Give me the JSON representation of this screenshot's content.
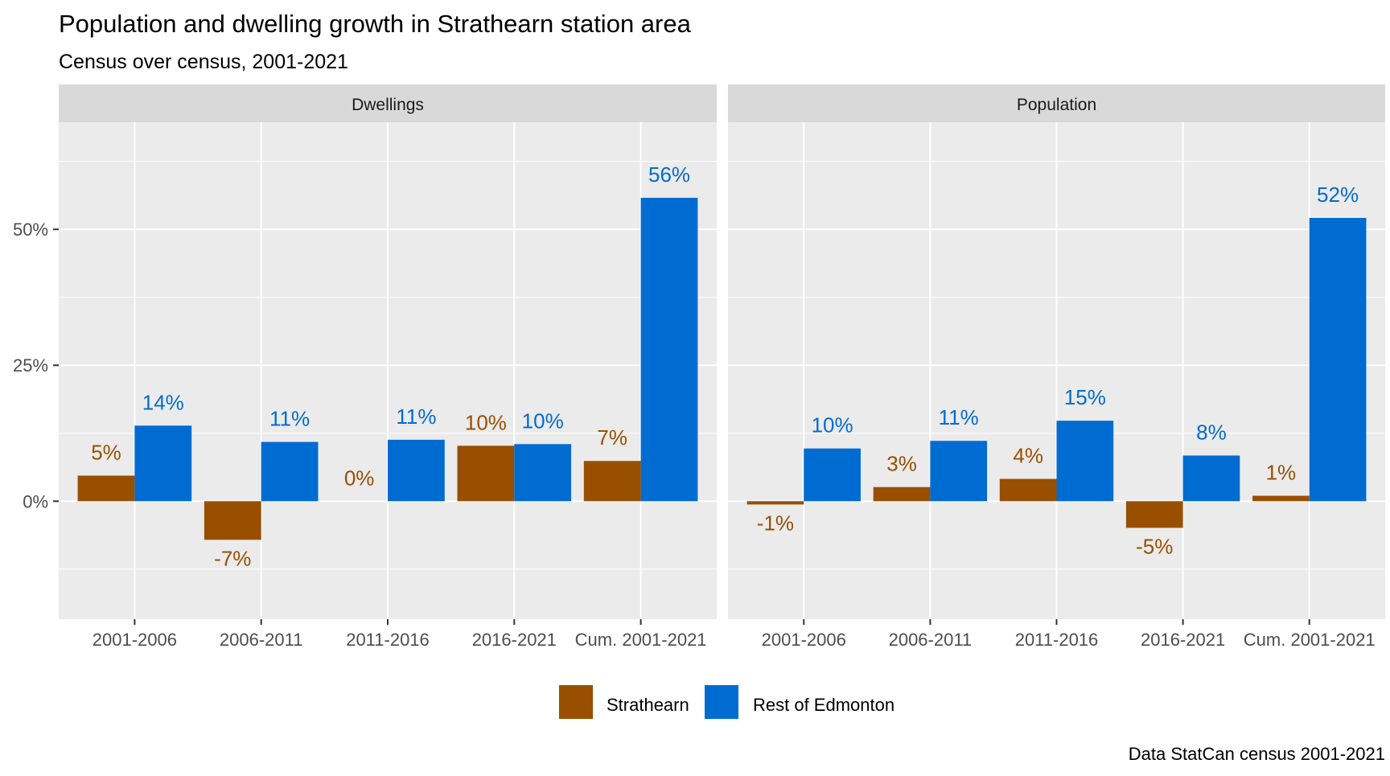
{
  "chart_data": {
    "type": "bar",
    "title": "Population and dwelling growth in Strathearn station area",
    "subtitle": "Census over census, 2001-2021",
    "caption": "Data StatCan census 2001-2021",
    "categories": [
      "2001-2006",
      "2006-2011",
      "2011-2016",
      "2016-2021",
      "Cum. 2001-2021"
    ],
    "ylim": [
      -21.7,
      69.7
    ],
    "yticks": [
      0,
      25,
      50
    ],
    "ytick_labels": [
      "0%",
      "25%",
      "50%"
    ],
    "grid": true,
    "legend_position": "bottom",
    "series_colors": {
      "Strathearn": "#994F00",
      "Rest of Edmonton": "#006CD1"
    },
    "legend": [
      "Strathearn",
      "Rest of Edmonton"
    ],
    "panels": [
      {
        "name": "Dwellings",
        "series": [
          {
            "name": "Strathearn",
            "values": [
              4.7,
              -7.1,
              0,
              10.2,
              7.4
            ],
            "labels": [
              "5%",
              "-7%",
              "0%",
              "10%",
              "7%"
            ]
          },
          {
            "name": "Rest of Edmonton",
            "values": [
              13.9,
              10.9,
              11.3,
              10.5,
              55.8
            ],
            "labels": [
              "14%",
              "11%",
              "11%",
              "10%",
              "56%"
            ]
          }
        ]
      },
      {
        "name": "Population",
        "series": [
          {
            "name": "Strathearn",
            "values": [
              -0.6,
              2.6,
              4.1,
              -4.9,
              1.0
            ],
            "labels": [
              "-1%",
              "3%",
              "4%",
              "-5%",
              "1%"
            ]
          },
          {
            "name": "Rest of Edmonton",
            "values": [
              9.7,
              11.1,
              14.8,
              8.4,
              52.1
            ],
            "labels": [
              "10%",
              "11%",
              "15%",
              "8%",
              "52%"
            ]
          }
        ]
      }
    ]
  }
}
